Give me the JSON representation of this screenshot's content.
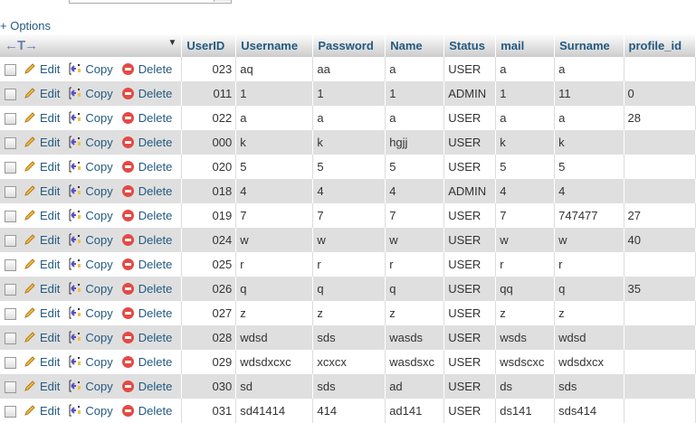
{
  "options_label": "+ Options",
  "actions": {
    "edit": "Edit",
    "copy": "Copy",
    "delete": "Delete"
  },
  "header": {
    "resize": "←T→",
    "columns": [
      "UserID",
      "Username",
      "Password",
      "Name",
      "Status",
      "mail",
      "Surname",
      "profile_id"
    ]
  },
  "rows": [
    [
      "023",
      "aq",
      "aa",
      "a",
      "USER",
      "a",
      "a",
      ""
    ],
    [
      "011",
      "1",
      "1",
      "1",
      "ADMIN",
      "1",
      "11",
      "0"
    ],
    [
      "022",
      "a",
      "a",
      "a",
      "USER",
      "a",
      "a",
      "28"
    ],
    [
      "000",
      "k",
      "k",
      "hgjj",
      "USER",
      "k",
      "k",
      ""
    ],
    [
      "020",
      "5",
      "5",
      "5",
      "USER",
      "5",
      "5",
      ""
    ],
    [
      "018",
      "4",
      "4",
      "4",
      "ADMIN",
      "4",
      "4",
      ""
    ],
    [
      "019",
      "7",
      "7",
      "7",
      "USER",
      "7",
      "747477",
      "27"
    ],
    [
      "024",
      "w",
      "w",
      "w",
      "USER",
      "w",
      "w",
      "40"
    ],
    [
      "025",
      "r",
      "r",
      "r",
      "USER",
      "r",
      "r",
      ""
    ],
    [
      "026",
      "q",
      "q",
      "q",
      "USER",
      "qq",
      "q",
      "35"
    ],
    [
      "027",
      "z",
      "z",
      "z",
      "USER",
      "z",
      "z",
      ""
    ],
    [
      "028",
      "wdsd",
      "sds",
      "wasds",
      "USER",
      "wsds",
      "wdsd",
      ""
    ],
    [
      "029",
      "wdsdxcxc",
      "xcxcx",
      "wasdsxc",
      "USER",
      "wsdscxc",
      "wdsdxcx",
      ""
    ],
    [
      "030",
      "sd",
      "sds",
      "ad",
      "USER",
      "ds",
      "sds",
      ""
    ],
    [
      "031",
      "sd41414",
      "414",
      "ad141",
      "USER",
      "ds141",
      "sds414",
      ""
    ]
  ]
}
